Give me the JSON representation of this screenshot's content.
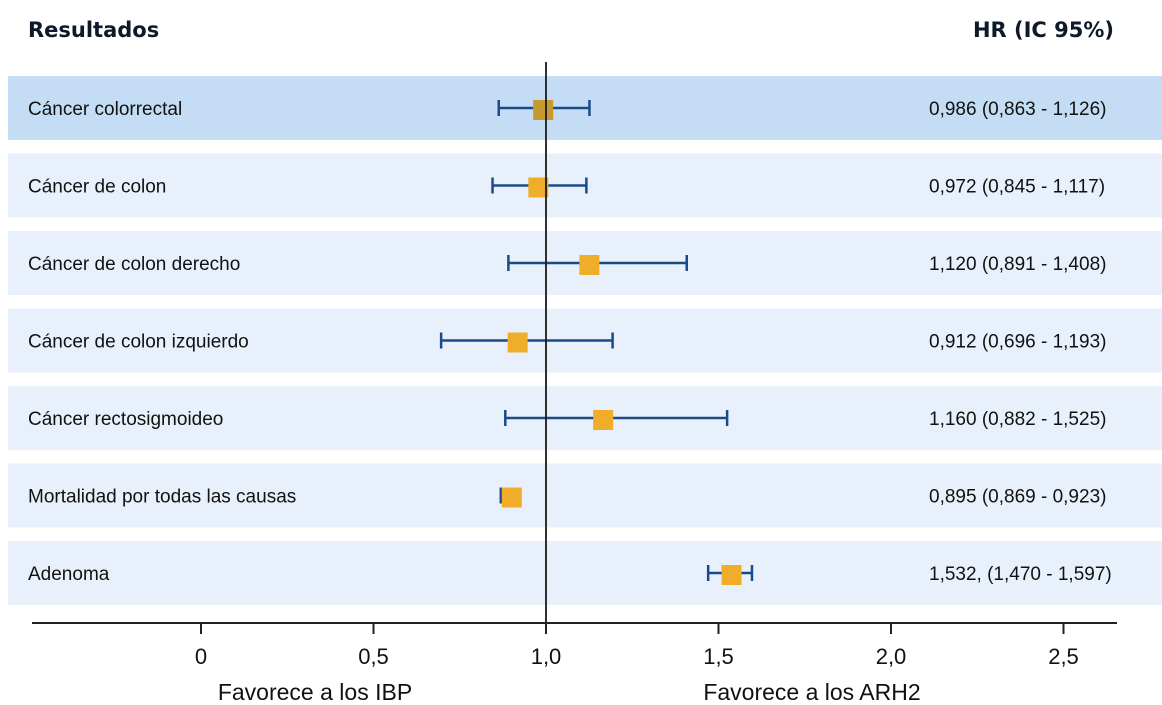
{
  "header": {
    "results_label": "Resultados",
    "hr_label": "HR (IC 95%)"
  },
  "colors": {
    "row_highlight": "#c5ddf4",
    "row_normal": "#e8f1fb",
    "ci_line": "#1b4a8a",
    "marker": "#f0ad2a",
    "marker_highlight": "#c79a2f",
    "reference_line": "#1a1a1a",
    "axis": "#222222"
  },
  "chart_data": {
    "type": "forest",
    "reference_value": 1.0,
    "xlim": [
      -0.25,
      2.75
    ],
    "x_ticks": [
      0,
      0.5,
      1.0,
      1.5,
      2.0,
      2.5
    ],
    "x_tick_labels": [
      "0",
      "0,5",
      "1,0",
      "1,5",
      "2,0",
      "2,5"
    ],
    "left_side_label": "Favorece a los IBP",
    "right_side_label": "Favorece a los ARH2",
    "grid": false,
    "rows": [
      {
        "label": "Cáncer colorrectal",
        "hr": 0.986,
        "ci_low": 0.863,
        "ci_high": 1.126,
        "hr_text": "0,986 (0,863 - 1,126)",
        "highlight": true
      },
      {
        "label": "Cáncer de colon",
        "hr": 0.972,
        "ci_low": 0.845,
        "ci_high": 1.117,
        "hr_text": "0,972 (0,845 - 1,117)",
        "highlight": false
      },
      {
        "label": "Cáncer de colon derecho",
        "hr": 1.12,
        "ci_low": 0.891,
        "ci_high": 1.408,
        "hr_text": "1,120 (0,891 - 1,408)",
        "highlight": false
      },
      {
        "label": "Cáncer de colon izquierdo",
        "hr": 0.912,
        "ci_low": 0.696,
        "ci_high": 1.193,
        "hr_text": "0,912 (0,696 - 1,193)",
        "highlight": false
      },
      {
        "label": "Cáncer rectosigmoideo",
        "hr": 1.16,
        "ci_low": 0.882,
        "ci_high": 1.525,
        "hr_text": "1,160 (0,882 - 1,525)",
        "highlight": false
      },
      {
        "label": "Mortalidad por todas las causas",
        "hr": 0.895,
        "ci_low": 0.869,
        "ci_high": 0.923,
        "hr_text": "0,895 (0,869 - 0,923)",
        "highlight": false
      },
      {
        "label": "Adenoma",
        "hr": 1.532,
        "ci_low": 1.47,
        "ci_high": 1.597,
        "hr_text": "1,532, (1,470 - 1,597)",
        "highlight": false
      }
    ]
  }
}
